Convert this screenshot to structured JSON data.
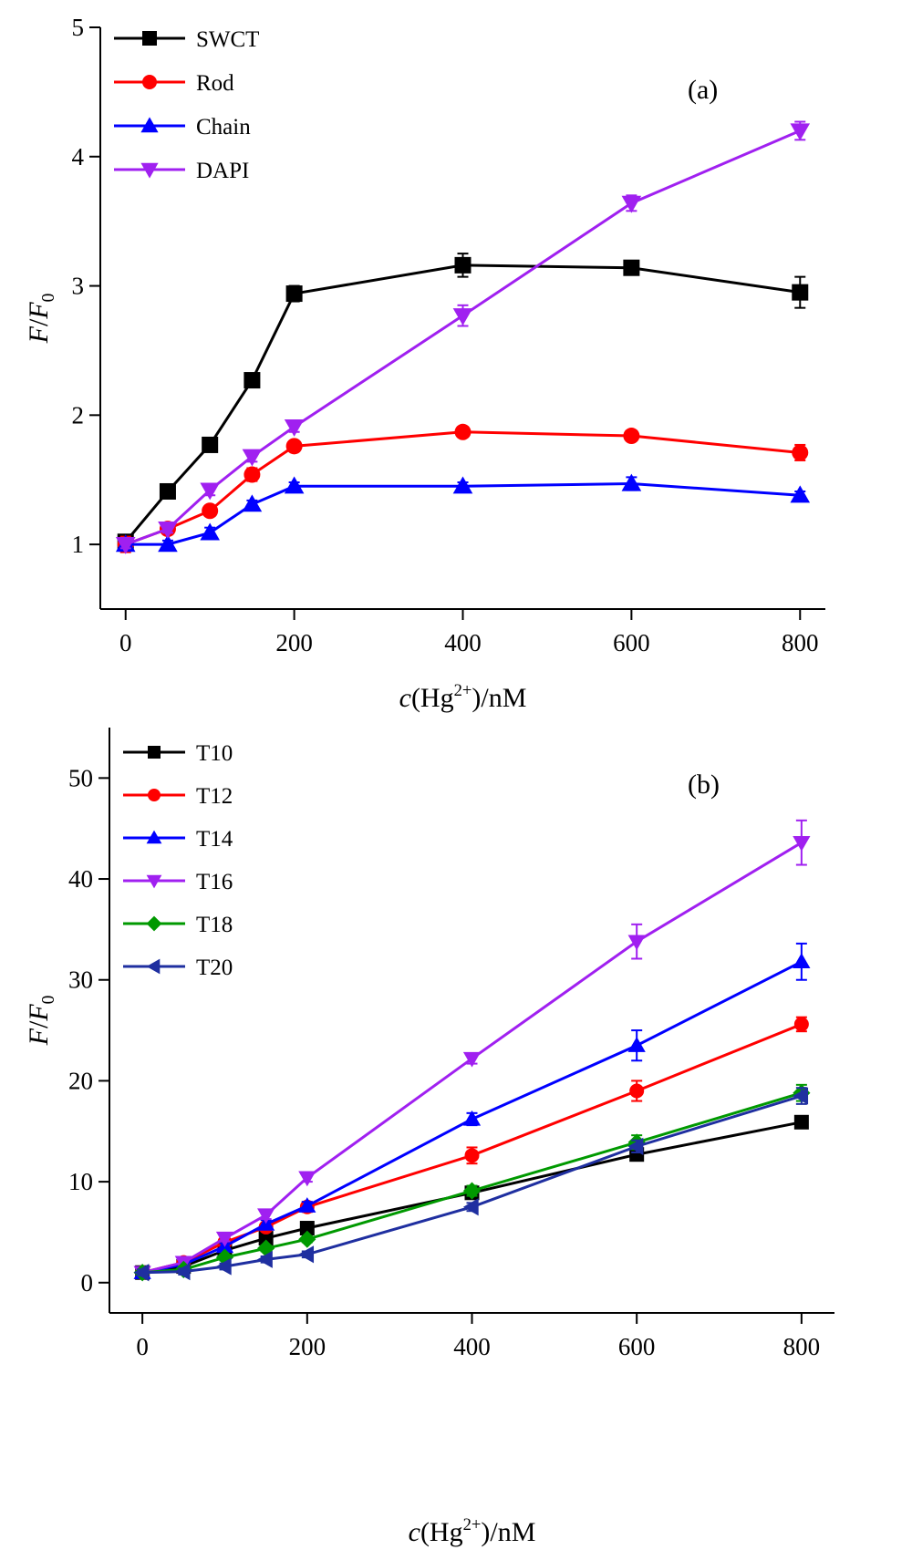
{
  "chart_data": [
    {
      "type": "line",
      "panel_label": "(a)",
      "xlabel_prefix": "c",
      "xlabel_open": "(Hg",
      "xlabel_sup": "2+",
      "xlabel_close": ")/nM",
      "ylabel_f": "F",
      "ylabel_slash": "/",
      "ylabel_f0": "F",
      "ylabel_sub": "0",
      "xlim": [
        -30,
        830
      ],
      "ylim": [
        0.5,
        5
      ],
      "xticks": [
        0,
        200,
        400,
        600,
        800
      ],
      "yticks": [
        1,
        2,
        3,
        4,
        5
      ],
      "grid": false,
      "legend_position": "top-left",
      "x": [
        0,
        50,
        100,
        150,
        200,
        400,
        600,
        800
      ],
      "series": [
        {
          "name": "SWCT",
          "color": "#000000",
          "marker": "square",
          "values": [
            1.02,
            1.41,
            1.77,
            2.27,
            2.94,
            3.16,
            3.14,
            2.95
          ],
          "errors": [
            0.04,
            0.04,
            0.04,
            0.04,
            0.06,
            0.09,
            0.03,
            0.12
          ]
        },
        {
          "name": "Rod",
          "color": "#ff0000",
          "marker": "circle",
          "values": [
            1.0,
            1.12,
            1.26,
            1.54,
            1.76,
            1.87,
            1.84,
            1.71
          ],
          "errors": [
            0.06,
            0.03,
            0.04,
            0.05,
            0.03,
            0.03,
            0.03,
            0.06
          ]
        },
        {
          "name": "Chain",
          "color": "#0000ff",
          "marker": "triangle-up",
          "values": [
            1.0,
            1.0,
            1.09,
            1.31,
            1.45,
            1.45,
            1.47,
            1.38
          ],
          "errors": [
            0.03,
            0.03,
            0.04,
            0.03,
            0.03,
            0.03,
            0.05,
            0.03
          ]
        },
        {
          "name": "DAPI",
          "color": "#a020f0",
          "marker": "triangle-down",
          "values": [
            1.0,
            1.12,
            1.42,
            1.68,
            1.91,
            2.77,
            3.64,
            4.2
          ],
          "errors": [
            0.03,
            0.03,
            0.04,
            0.04,
            0.04,
            0.08,
            0.06,
            0.07
          ]
        }
      ]
    },
    {
      "type": "line",
      "panel_label": "(b)",
      "xlabel_prefix": "c",
      "xlabel_open": "(Hg",
      "xlabel_sup": "2+",
      "xlabel_close": ")/nM",
      "ylabel_f": "F",
      "ylabel_slash": "/",
      "ylabel_f0": "F",
      "ylabel_sub": "0",
      "xlim": [
        -40,
        840
      ],
      "ylim": [
        -3,
        55
      ],
      "xticks": [
        0,
        200,
        400,
        600,
        800
      ],
      "yticks": [
        0,
        10,
        20,
        30,
        40,
        50
      ],
      "grid": false,
      "legend_position": "top-left",
      "x": [
        0,
        50,
        100,
        150,
        200,
        400,
        600,
        800
      ],
      "series": [
        {
          "name": "T10",
          "color": "#000000",
          "marker": "square",
          "values": [
            1.0,
            1.6,
            3.2,
            4.4,
            5.4,
            8.9,
            12.7,
            15.9
          ],
          "errors": [
            0.3,
            0.3,
            0.3,
            0.3,
            0.3,
            0.3,
            0.4,
            0.4
          ]
        },
        {
          "name": "T12",
          "color": "#ff0000",
          "marker": "circle",
          "values": [
            1.0,
            2.0,
            4.0,
            5.5,
            7.5,
            12.6,
            19.0,
            25.6
          ],
          "errors": [
            0.3,
            0.3,
            0.3,
            0.4,
            0.5,
            0.8,
            1.0,
            0.7
          ]
        },
        {
          "name": "T14",
          "color": "#0000ff",
          "marker": "triangle-up",
          "values": [
            1.0,
            1.8,
            3.6,
            5.8,
            7.6,
            16.2,
            23.5,
            31.8
          ],
          "errors": [
            0.3,
            0.3,
            0.3,
            0.4,
            0.4,
            0.6,
            1.5,
            1.8
          ]
        },
        {
          "name": "T16",
          "color": "#a020f0",
          "marker": "triangle-down",
          "values": [
            1.0,
            2.0,
            4.4,
            6.7,
            10.4,
            22.2,
            33.8,
            43.6
          ],
          "errors": [
            0.3,
            0.3,
            0.3,
            0.4,
            0.4,
            0.5,
            1.7,
            2.2
          ]
        },
        {
          "name": "T18",
          "color": "#009900",
          "marker": "diamond",
          "values": [
            1.0,
            1.3,
            2.5,
            3.4,
            4.3,
            9.1,
            13.9,
            18.8
          ],
          "errors": [
            0.3,
            0.3,
            0.3,
            0.3,
            0.3,
            0.5,
            0.7,
            0.8
          ]
        },
        {
          "name": "T20",
          "color": "#1f2fa0",
          "marker": "triangle-left",
          "values": [
            1.0,
            1.1,
            1.6,
            2.3,
            2.8,
            7.5,
            13.5,
            18.5
          ],
          "errors": [
            0.3,
            0.3,
            0.3,
            0.3,
            0.3,
            0.4,
            0.6,
            0.8
          ]
        }
      ]
    }
  ]
}
